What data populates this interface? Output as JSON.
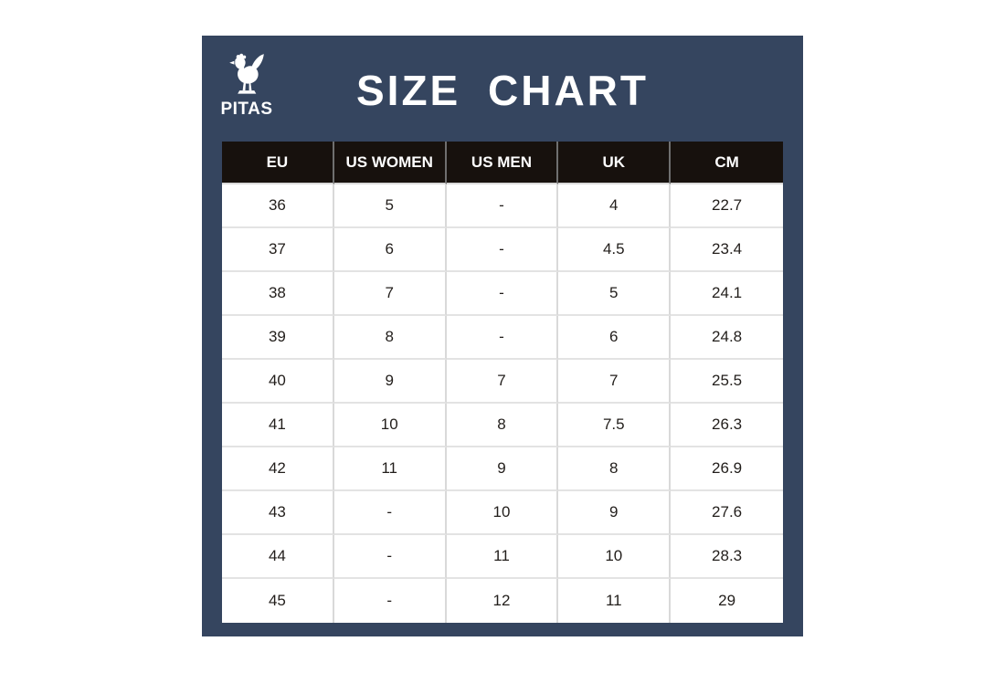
{
  "brand": {
    "name": "PITAS",
    "logo_icon": "rooster-icon"
  },
  "title": "SIZE CHART",
  "colors": {
    "panel_navy": "#35455f",
    "header_black": "#17110d",
    "cell_text": "#221e1b",
    "divider_grey": "#d9d9d9",
    "white": "#ffffff"
  },
  "chart_data": {
    "type": "table",
    "title": "SIZE CHART",
    "headers": [
      "EU",
      "US WOMEN",
      "US MEN",
      "UK",
      "CM"
    ],
    "rows": [
      [
        "36",
        "5",
        "-",
        "4",
        "22.7"
      ],
      [
        "37",
        "6",
        "-",
        "4.5",
        "23.4"
      ],
      [
        "38",
        "7",
        "-",
        "5",
        "24.1"
      ],
      [
        "39",
        "8",
        "-",
        "6",
        "24.8"
      ],
      [
        "40",
        "9",
        "7",
        "7",
        "25.5"
      ],
      [
        "41",
        "10",
        "8",
        "7.5",
        "26.3"
      ],
      [
        "42",
        "11",
        "9",
        "8",
        "26.9"
      ],
      [
        "43",
        "-",
        "10",
        "9",
        "27.6"
      ],
      [
        "44",
        "-",
        "11",
        "10",
        "28.3"
      ],
      [
        "45",
        "-",
        "12",
        "11",
        "29"
      ]
    ]
  }
}
